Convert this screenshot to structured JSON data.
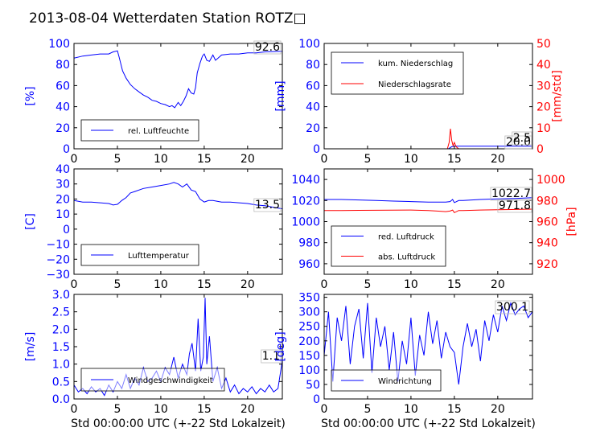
{
  "figure": {
    "title": "2013-08-04 Wetterdaten Station ROTZ□"
  },
  "chart_data": [
    {
      "type": "line",
      "panel": "humidity",
      "ylabel": "[%]",
      "ylim": [
        0,
        100
      ],
      "yticks": [
        "0",
        "20",
        "40",
        "60",
        "80",
        "100"
      ],
      "xlim": [
        0,
        24
      ],
      "xticks": [
        "0",
        "5",
        "10",
        "15",
        "20"
      ],
      "xlabel": "",
      "annotation": "92.6",
      "legend_position": "lower-left",
      "series": [
        {
          "name": "rel. Luftfeuchte",
          "color": "#0000ff",
          "x": [
            0,
            1,
            2,
            3,
            4,
            4.5,
            5,
            5.2,
            5.6,
            6,
            6.5,
            7,
            7.5,
            8,
            8.5,
            9,
            9.5,
            10,
            10.5,
            11,
            11.3,
            11.6,
            12,
            12.3,
            12.6,
            12.9,
            13.2,
            13.5,
            13.8,
            14,
            14.2,
            14.5,
            14.8,
            15,
            15.3,
            15.6,
            16,
            16.3,
            16.6,
            17,
            18,
            19,
            20,
            21,
            22,
            23,
            24
          ],
          "y": [
            86,
            88,
            89,
            90,
            90,
            92,
            93,
            87,
            74,
            67,
            61,
            57,
            54,
            51,
            49,
            46,
            45,
            43,
            42,
            40,
            41,
            39,
            44,
            41,
            45,
            50,
            57,
            53,
            52,
            58,
            72,
            81,
            88,
            90,
            84,
            83,
            89,
            84,
            86,
            89,
            90,
            90,
            91,
            91,
            92,
            92.3,
            92.6
          ]
        }
      ]
    },
    {
      "type": "line",
      "panel": "precipitation",
      "ylabel": "[mm]",
      "ylim": [
        0,
        100
      ],
      "yticks": [
        "0",
        "20",
        "40",
        "60",
        "80",
        "100"
      ],
      "ylabel_right": "[mm/std]",
      "ylim_right": [
        0,
        50
      ],
      "yticks_right": [
        "0",
        "10",
        "20",
        "30",
        "40",
        "50"
      ],
      "xlim": [
        0,
        24
      ],
      "xticks": [
        "0",
        "5",
        "10",
        "15",
        "20"
      ],
      "xlabel": "",
      "annotations": [
        "20.0",
        "2.5"
      ],
      "legend_position": "upper-left",
      "series": [
        {
          "name": "kum. Niederschlag",
          "color": "#0000ff",
          "axis": "left",
          "x": [
            0,
            14.3,
            14.5,
            14.7,
            15,
            24
          ],
          "y": [
            0,
            0,
            1,
            2,
            2.5,
            2.5
          ]
        },
        {
          "name": "Niederschlagsrate",
          "color": "#ff0000",
          "axis": "right",
          "x": [
            0,
            14.2,
            14.4,
            14.55,
            14.7,
            14.85,
            15,
            15.2,
            15.5,
            24
          ],
          "y": [
            0,
            0,
            3,
            9.5,
            4,
            1.5,
            3,
            1,
            0,
            0
          ]
        }
      ]
    },
    {
      "type": "line",
      "panel": "temperature",
      "ylabel": "[C]",
      "ylim": [
        -30,
        40
      ],
      "yticks": [
        "−30",
        "−20",
        "−10",
        "0",
        "10",
        "20",
        "30",
        "40"
      ],
      "xlim": [
        0,
        24
      ],
      "xticks": [
        "0",
        "5",
        "10",
        "15",
        "20"
      ],
      "xlabel": "",
      "annotation": "13.5",
      "legend_position": "lower-left",
      "series": [
        {
          "name": "Lufttemperatur",
          "color": "#0000ff",
          "x": [
            0,
            1,
            2,
            3,
            4,
            4.5,
            5,
            5.5,
            6,
            6.5,
            7,
            8,
            9,
            10,
            11,
            11.5,
            12,
            12.5,
            13,
            13.5,
            14,
            14.5,
            15,
            15.5,
            16,
            17,
            18,
            19,
            20,
            21,
            22,
            23,
            24
          ],
          "y": [
            19,
            18,
            18,
            17.5,
            17,
            16,
            16.5,
            19,
            21,
            24,
            25,
            27,
            28,
            29,
            30,
            31,
            30,
            28,
            30,
            26,
            25,
            20,
            18,
            19,
            19,
            18,
            18,
            17.5,
            17,
            16,
            15.5,
            14.5,
            13.5
          ]
        }
      ]
    },
    {
      "type": "line",
      "panel": "pressure",
      "ylabel": "",
      "ylim": [
        950,
        1050
      ],
      "yticks": [
        "960",
        "980",
        "1000",
        "1020",
        "1040"
      ],
      "ylabel_right": "[hPa]",
      "ylim_right": [
        910,
        1010
      ],
      "yticks_right": [
        "920",
        "940",
        "960",
        "980",
        "1000"
      ],
      "xlim": [
        0,
        24
      ],
      "xticks": [
        "0",
        "5",
        "10",
        "15",
        "20"
      ],
      "xlabel": "",
      "annotations": [
        "1022.7",
        "971.8"
      ],
      "legend_position": "lower-left",
      "series": [
        {
          "name": "red. Luftdruck",
          "color": "#0000ff",
          "axis": "left",
          "x": [
            0,
            2,
            4,
            6,
            8,
            10,
            12,
            13,
            14,
            14.5,
            14.8,
            15,
            15.5,
            16,
            18,
            20,
            22,
            24
          ],
          "y": [
            1021,
            1021,
            1020.5,
            1020,
            1019.5,
            1019,
            1018.5,
            1018.5,
            1018.5,
            1019,
            1021,
            1018,
            1020,
            1020,
            1021,
            1021.5,
            1022,
            1022.7
          ]
        },
        {
          "name": "abs. Luftdruck",
          "color": "#ff0000",
          "axis": "right",
          "x": [
            0,
            2,
            4,
            6,
            8,
            10,
            12,
            13,
            14,
            14.5,
            14.8,
            15,
            15.5,
            16,
            18,
            20,
            22,
            24
          ],
          "y": [
            970.5,
            970.5,
            970.7,
            970.8,
            970.9,
            971,
            970.5,
            970,
            969.5,
            970,
            971,
            968.5,
            970.5,
            970.5,
            971,
            971.2,
            971.5,
            971.8
          ]
        }
      ]
    },
    {
      "type": "line",
      "panel": "wind-speed",
      "ylabel": "[m/s]",
      "ylim": [
        0,
        3
      ],
      "yticks": [
        "0.0",
        "0.5",
        "1.0",
        "1.5",
        "2.0",
        "2.5",
        "3.0"
      ],
      "xlim": [
        0,
        24
      ],
      "xticks": [
        "0",
        "5",
        "10",
        "15",
        "20"
      ],
      "xlabel": "Std 00:00:00 UTC (+-22 Std Lokalzeit)",
      "annotation": "1.1",
      "legend_position": "lower-left",
      "series": [
        {
          "name": "Windgeschwindigkeit",
          "color": "#0000ff",
          "x": [
            0,
            0.5,
            1,
            1.5,
            2,
            2.5,
            3,
            3.5,
            4,
            4.5,
            5,
            5.5,
            6,
            6.5,
            7,
            7.5,
            8,
            8.5,
            9,
            9.5,
            10,
            10.5,
            11,
            11.5,
            12,
            12.5,
            13,
            13.3,
            13.6,
            14,
            14.3,
            14.6,
            14.9,
            15.1,
            15.3,
            15.6,
            16,
            16.5,
            17,
            17.5,
            18,
            18.5,
            19,
            19.5,
            20,
            20.5,
            21,
            21.5,
            22,
            22.5,
            23,
            23.5,
            24
          ],
          "y": [
            0.4,
            0.2,
            0.3,
            0.15,
            0.35,
            0.2,
            0.3,
            0.1,
            0.4,
            0.2,
            0.5,
            0.3,
            0.7,
            0.3,
            0.6,
            0.4,
            0.9,
            0.5,
            0.6,
            0.8,
            0.5,
            0.9,
            0.7,
            1.2,
            0.6,
            1.0,
            0.7,
            1.3,
            1.6,
            0.8,
            2.3,
            0.8,
            1.2,
            2.9,
            1.0,
            1.8,
            0.5,
            0.9,
            0.3,
            0.6,
            0.2,
            0.4,
            0.15,
            0.3,
            0.2,
            0.35,
            0.15,
            0.3,
            0.2,
            0.4,
            0.2,
            0.3,
            1.1
          ]
        }
      ]
    },
    {
      "type": "line",
      "panel": "wind-direction",
      "ylabel": "[deg]",
      "ylim": [
        0,
        360
      ],
      "yticks": [
        "0",
        "50",
        "100",
        "150",
        "200",
        "250",
        "300",
        "350"
      ],
      "xlim": [
        0,
        24
      ],
      "xticks": [
        "0",
        "5",
        "10",
        "15",
        "20"
      ],
      "xlabel": "Std 00:00:00 UTC (+-22 Std Lokalzeit)",
      "annotation": "300.1",
      "legend_position": "lower-left",
      "series": [
        {
          "name": "Windrichtung",
          "color": "#0000ff",
          "x": [
            0,
            0.5,
            1,
            1.5,
            2,
            2.5,
            3,
            3.5,
            4,
            4.5,
            5,
            5.5,
            6,
            6.5,
            7,
            7.5,
            8,
            8.5,
            9,
            9.5,
            10,
            10.5,
            11,
            11.5,
            12,
            12.5,
            13,
            13.5,
            14,
            14.5,
            15,
            15.5,
            16,
            16.5,
            17,
            17.5,
            18,
            18.5,
            19,
            19.5,
            20,
            20.5,
            21,
            21.5,
            22,
            22.5,
            23,
            23.5,
            24
          ],
          "y": [
            150,
            300,
            60,
            280,
            200,
            320,
            120,
            250,
            310,
            140,
            330,
            90,
            280,
            180,
            250,
            100,
            230,
            60,
            200,
            120,
            280,
            80,
            220,
            150,
            300,
            190,
            270,
            140,
            230,
            180,
            160,
            50,
            180,
            260,
            180,
            240,
            130,
            270,
            200,
            290,
            230,
            320,
            270,
            330,
            290,
            310,
            320,
            280,
            300.1
          ]
        }
      ]
    }
  ]
}
